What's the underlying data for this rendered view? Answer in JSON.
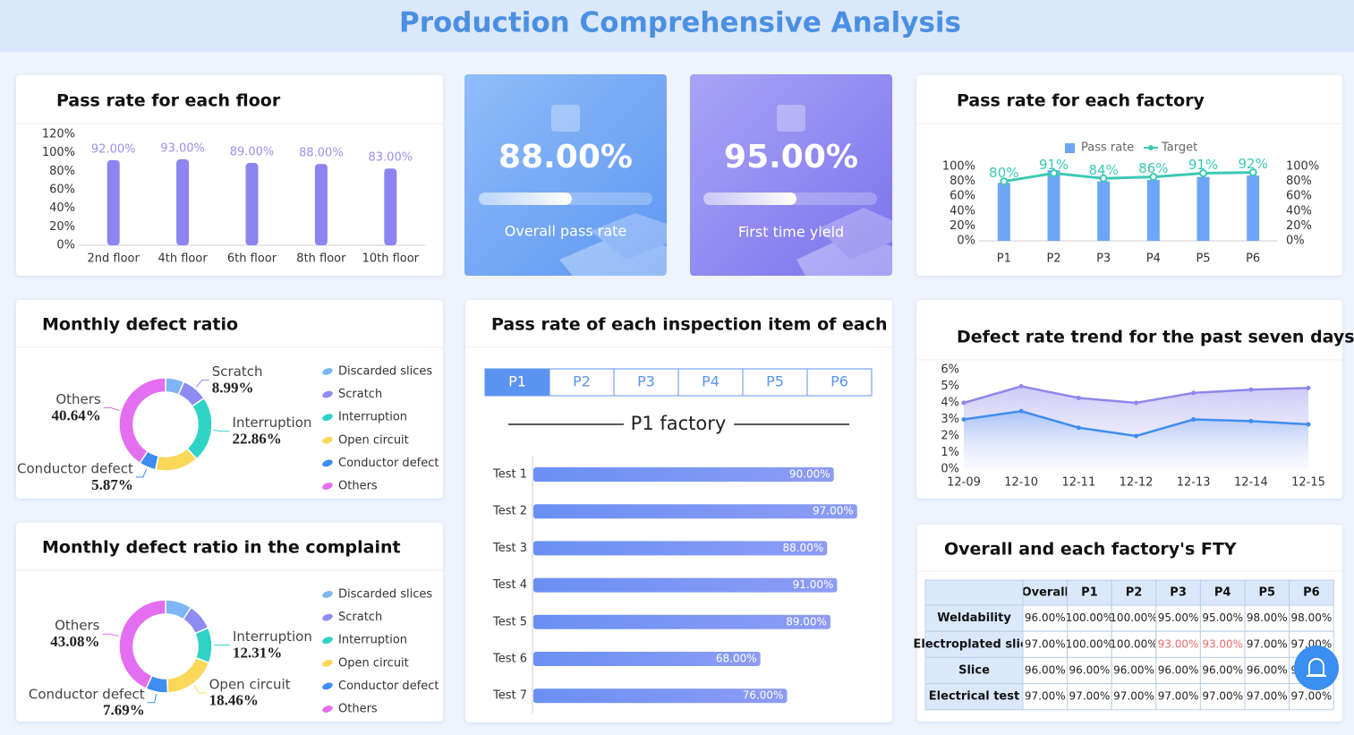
{
  "title": "Production Comprehensive Analysis",
  "kpis": [
    {
      "value": "88.00%",
      "label": "Overall pass rate"
    },
    {
      "value": "95.00%",
      "label": "First time yield"
    }
  ],
  "chart_data": [
    {
      "type": "bar",
      "title": "Pass rate for each floor",
      "categories": [
        "2nd floor",
        "4th floor",
        "6th floor",
        "8th floor",
        "10th floor"
      ],
      "values": [
        92,
        93,
        89,
        88,
        83
      ],
      "value_labels": [
        "92.00%",
        "93.00%",
        "89.00%",
        "88.00%",
        "83.00%"
      ],
      "color": "#8b85f0",
      "ylim": [
        0,
        120
      ],
      "yticks": [
        {
          "value": 0,
          "label": "0%"
        },
        {
          "value": 20,
          "label": "20%"
        },
        {
          "value": 40,
          "label": "40%"
        },
        {
          "value": 60,
          "label": "60%"
        },
        {
          "value": 80,
          "label": "80%"
        },
        {
          "value": 100,
          "label": "100%"
        },
        {
          "value": 120,
          "label": "120%"
        }
      ],
      "grid": false
    },
    {
      "type": "combo",
      "title": "Pass rate for each factory",
      "categories": [
        "P1",
        "P2",
        "P3",
        "P4",
        "P5",
        "P6"
      ],
      "series": [
        {
          "name": "Pass rate",
          "type": "bar",
          "color": "#6ea6f7",
          "values": [
            78,
            95,
            80,
            82,
            86,
            88
          ]
        },
        {
          "name": "Target",
          "type": "line",
          "axis": "y2",
          "color": "#3cc8b4",
          "values": [
            80,
            91,
            84,
            86,
            91,
            92
          ],
          "value_labels": [
            "80%",
            "91%",
            "84%",
            "86%",
            "91%",
            "92%"
          ]
        }
      ],
      "ylim": [
        0,
        100
      ],
      "yticks": [
        {
          "value": 0,
          "label": "0%"
        },
        {
          "value": 20,
          "label": "20%"
        },
        {
          "value": 40,
          "label": "40%"
        },
        {
          "value": 60,
          "label": "60%"
        },
        {
          "value": 80,
          "label": "80%"
        },
        {
          "value": 100,
          "label": "100%"
        }
      ],
      "y2lim": [
        0,
        100
      ],
      "y2ticks": [
        {
          "value": 0,
          "label": "0%"
        },
        {
          "value": 20,
          "label": "20%"
        },
        {
          "value": 40,
          "label": "40%"
        },
        {
          "value": 60,
          "label": "60%"
        },
        {
          "value": 80,
          "label": "80%"
        },
        {
          "value": 100,
          "label": "100%"
        }
      ],
      "legend": "top"
    },
    {
      "type": "donut",
      "title": "Monthly defect ratio",
      "categories": [
        "Discarded slices",
        "Scratch",
        "Interruption",
        "Open circuit",
        "Conductor defect",
        "Others"
      ],
      "values": [
        6.5,
        8.99,
        22.86,
        15.14,
        5.87,
        40.64
      ],
      "value_labels": [
        null,
        "8.99%",
        "22.86%",
        null,
        "5.87%",
        "40.64%"
      ],
      "colors": [
        "#7eb6f5",
        "#8e8cf0",
        "#2ed3c6",
        "#fbd85a",
        "#3f8df0",
        "#e46ef0"
      ],
      "legend": "right"
    },
    {
      "type": "donut",
      "title": "Monthly defect ratio in the complaint",
      "categories": [
        "Discarded slices",
        "Scratch",
        "Interruption",
        "Open circuit",
        "Conductor defect",
        "Others"
      ],
      "values": [
        9.23,
        9.23,
        12.31,
        18.46,
        7.69,
        43.08
      ],
      "value_labels": [
        null,
        null,
        "12.31%",
        "18.46%",
        "7.69%",
        "43.08%"
      ],
      "colors": [
        "#7eb6f5",
        "#8e8cf0",
        "#2ed3c6",
        "#fbd85a",
        "#3f8df0",
        "#e46ef0"
      ],
      "legend": "right"
    },
    {
      "type": "hbar",
      "title": "Pass rate of each inspection item of each factory",
      "tabs": [
        "P1",
        "P2",
        "P3",
        "P4",
        "P5",
        "P6"
      ],
      "active_tab": "P1",
      "subtitle": "P1 factory",
      "categories": [
        "Test 1",
        "Test 2",
        "Test 3",
        "Test 4",
        "Test 5",
        "Test 6",
        "Test 7"
      ],
      "values": [
        90,
        97,
        88,
        91,
        89,
        68,
        76
      ],
      "value_labels": [
        "90.00%",
        "97.00%",
        "88.00%",
        "91.00%",
        "89.00%",
        "68.00%",
        "76.00%"
      ],
      "color": "#7391f5",
      "xlim": [
        0,
        100
      ]
    },
    {
      "type": "area",
      "title": "Defect rate trend for the past seven days",
      "x": [
        "12-09",
        "12-10",
        "12-11",
        "12-12",
        "12-13",
        "12-14",
        "12-15"
      ],
      "series": [
        {
          "color": "#8f87ec",
          "values": [
            4.0,
            5.0,
            4.3,
            4.0,
            4.6,
            4.8,
            4.9
          ]
        },
        {
          "color": "#3f8ef0",
          "values": [
            3.0,
            3.5,
            2.5,
            2.0,
            3.0,
            2.9,
            2.7
          ]
        }
      ],
      "ylim": [
        0,
        6
      ],
      "yticks": [
        {
          "value": 0,
          "label": "0%"
        },
        {
          "value": 1,
          "label": "1%"
        },
        {
          "value": 2,
          "label": "2%"
        },
        {
          "value": 3,
          "label": "3%"
        },
        {
          "value": 4,
          "label": "4%"
        },
        {
          "value": 5,
          "label": "5%"
        },
        {
          "value": 6,
          "label": "6%"
        }
      ]
    }
  ],
  "table": {
    "title": "Overall and each factory's FTY",
    "columns": [
      "Overall",
      "P1",
      "P2",
      "P3",
      "P4",
      "P5",
      "P6"
    ],
    "rows": [
      {
        "label": "Weldability",
        "cells": [
          "96.00%",
          "100.00%",
          "100.00%",
          "95.00%",
          "95.00%",
          "98.00%",
          "98.00%"
        ]
      },
      {
        "label": "Electroplated slice",
        "cells": [
          "97.00%",
          "100.00%",
          "100.00%",
          "93.00%",
          "93.00%",
          "97.00%",
          "97.00%"
        ]
      },
      {
        "label": "Slice",
        "cells": [
          "96.00%",
          "96.00%",
          "96.00%",
          "96.00%",
          "96.00%",
          "96.00%",
          "96.00%"
        ]
      },
      {
        "label": "Electrical test",
        "cells": [
          "97.00%",
          "97.00%",
          "97.00%",
          "97.00%",
          "97.00%",
          "97.00%",
          "97.00%"
        ]
      }
    ],
    "alert_color": "#f06a6a",
    "alert_cells": [
      [
        1,
        3
      ],
      [
        1,
        4
      ]
    ]
  }
}
